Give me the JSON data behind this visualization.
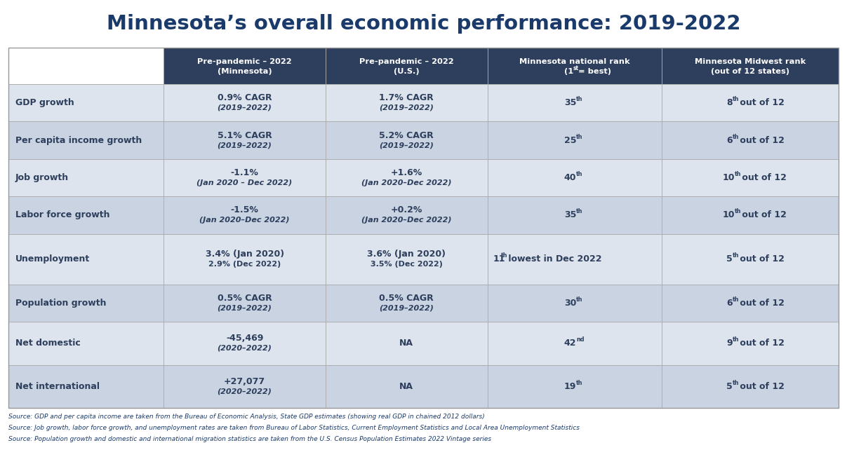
{
  "title": "Minnesota’s overall economic performance: 2019-2022",
  "title_color": "#1a3a6b",
  "header_bg": "#2e3f5e",
  "header_text_color": "#ffffff",
  "row_colors": [
    "#dde4ee",
    "#c9d3e2"
  ],
  "label_col_colors": [
    "#dde4ee",
    "#c9d3e2"
  ],
  "col_header_1_line1": "Pre-pandemic – 2022",
  "col_header_1_line2": "(Minnesota)",
  "col_header_2_line1": "Pre-pandemic – 2022",
  "col_header_2_line2": "(U.S.)",
  "col_header_3_line1": "Minnesota national rank",
  "col_header_3_line2_base": "(1",
  "col_header_3_line2_sup": "st",
  "col_header_3_line2_rest": " = best)",
  "col_header_4_line1": "Minnesota Midwest rank",
  "col_header_4_line2": "(out of 12 states)",
  "rows": [
    {
      "label": "GDP growth",
      "col1_line1": "0.9% CAGR",
      "col1_line2": "(2019–2022)",
      "col1_line2_italic": true,
      "col2_line1": "1.7% CAGR",
      "col2_line2": "(2019–2022)",
      "col2_line2_italic": true,
      "col3_base": "35",
      "col3_sup": "th",
      "col3_rest": "",
      "col4_base": "8",
      "col4_sup": "th",
      "col4_rest": " out of 12"
    },
    {
      "label": "Per capita income growth",
      "col1_line1": "5.1% CAGR",
      "col1_line2": "(2019–2022)",
      "col1_line2_italic": true,
      "col2_line1": "5.2% CAGR",
      "col2_line2": "(2019–2022)",
      "col2_line2_italic": true,
      "col3_base": "25",
      "col3_sup": "th",
      "col3_rest": "",
      "col4_base": "6",
      "col4_sup": "th",
      "col4_rest": " out of 12"
    },
    {
      "label": "Job growth",
      "col1_line1": "-1.1%",
      "col1_line2": "(Jan 2020 – Dec 2022)",
      "col1_line2_italic": true,
      "col2_line1": "+1.6%",
      "col2_line2": "(Jan 2020–Dec 2022)",
      "col2_line2_italic": true,
      "col3_base": "40",
      "col3_sup": "th",
      "col3_rest": "",
      "col4_base": "10",
      "col4_sup": "th",
      "col4_rest": " out of 12"
    },
    {
      "label": "Labor force growth",
      "col1_line1": "-1.5%",
      "col1_line2": "(Jan 2020–Dec 2022)",
      "col1_line2_italic": true,
      "col2_line1": "+0.2%",
      "col2_line2": "(Jan 2020–Dec 2022)",
      "col2_line2_italic": true,
      "col3_base": "35",
      "col3_sup": "th",
      "col3_rest": "",
      "col4_base": "10",
      "col4_sup": "th",
      "col4_rest": " out of 12"
    },
    {
      "label": "Unemployment",
      "col1_line1": "3.4% (Jan 2020)",
      "col1_line2": "2.9% (Dec 2022)",
      "col1_line2_italic": false,
      "col2_line1": "3.6% (Jan 2020)",
      "col2_line2": "3.5% (Dec 2022)",
      "col2_line2_italic": false,
      "col3_base": "11",
      "col3_sup": "th",
      "col3_rest": " lowest in Dec 2022",
      "col4_base": "5",
      "col4_sup": "th",
      "col4_rest": " out of 12"
    },
    {
      "label": "Population growth",
      "col1_line1": "0.5% CAGR",
      "col1_line2": "(2019–2022)",
      "col1_line2_italic": true,
      "col2_line1": "0.5% CAGR",
      "col2_line2": "(2019–2022)",
      "col2_line2_italic": true,
      "col3_base": "30",
      "col3_sup": "th",
      "col3_rest": "",
      "col4_base": "6",
      "col4_sup": "th",
      "col4_rest": " out of 12"
    },
    {
      "label": "Net domestic",
      "col1_line1": "-45,469",
      "col1_line2": "(2020–2022)",
      "col1_line2_italic": true,
      "col2_line1": "NA",
      "col2_line2": "",
      "col2_line2_italic": false,
      "col3_base": "42",
      "col3_sup": "nd",
      "col3_rest": "",
      "col4_base": "9",
      "col4_sup": "th",
      "col4_rest": " out of 12"
    },
    {
      "label": "Net international",
      "col1_line1": "+27,077",
      "col1_line2": "(2020–2022)",
      "col1_line2_italic": true,
      "col2_line1": "NA",
      "col2_line2": "",
      "col2_line2_italic": false,
      "col3_base": "19",
      "col3_sup": "th",
      "col3_rest": "",
      "col4_base": "5",
      "col4_sup": "th",
      "col4_rest": " out of 12"
    }
  ],
  "footnotes": [
    "Source: GDP and per capita income are taken from the Bureau of Economic Analysis, State GDP estimates (showing real GDP in chained 2012 dollars)",
    "Source: Job growth, labor force growth, and unemployment rates are taken from Bureau of Labor Statistics, Current Employment Statistics and Local Area Unemployment Statistics",
    "Source: Population growth and domestic and international migration statistics are taken from the U.S. Census Population Estimates 2022 Vintage series"
  ],
  "footnote_color": "#1a3a6b"
}
